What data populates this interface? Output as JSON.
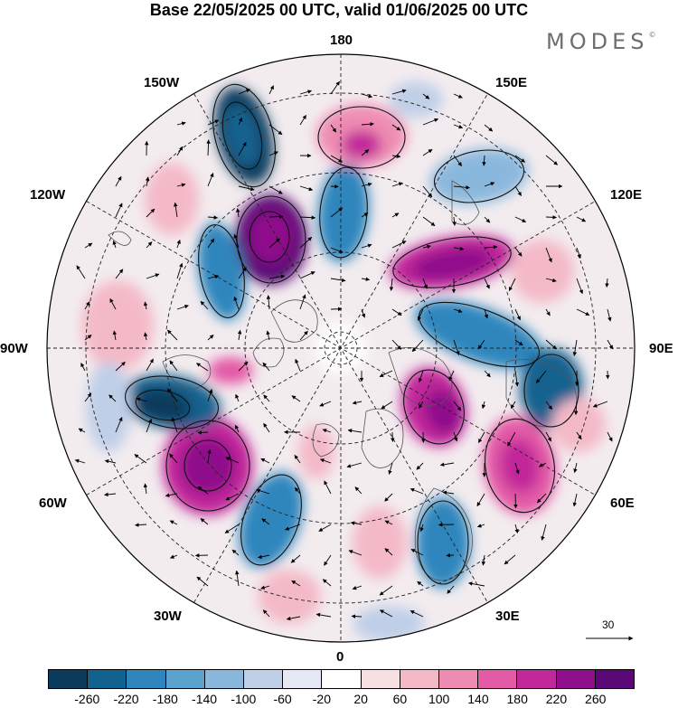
{
  "title": "Base 22/05/2025 00 UTC, valid 01/06/2025 00 UTC",
  "brand": "MODES",
  "brand_mark": "©",
  "longitude_labels": {
    "180": "180",
    "150E": "150E",
    "120E": "120E",
    "90E": "90E",
    "60E": "60E",
    "30E": "30E",
    "0": "0",
    "30W": "30W",
    "60W": "60W",
    "90W": "90W",
    "120W": "120W",
    "150W": "150W"
  },
  "reference_vector": {
    "value": "30"
  },
  "colorbar": {
    "colors": [
      "#0b3a5c",
      "#12628f",
      "#2f86bd",
      "#5aa3cf",
      "#8ab8dd",
      "#bfcfe8",
      "#e7e8f5",
      "#ffffff",
      "#f8dfe2",
      "#f4b9c7",
      "#ef8cb2",
      "#e35aa6",
      "#c1289a",
      "#8f0f8b",
      "#5a0876"
    ],
    "ticks": [
      "-260",
      "-220",
      "-180",
      "-140",
      "-100",
      "-60",
      "-20",
      "20",
      "60",
      "100",
      "140",
      "180",
      "220",
      "260"
    ]
  }
}
